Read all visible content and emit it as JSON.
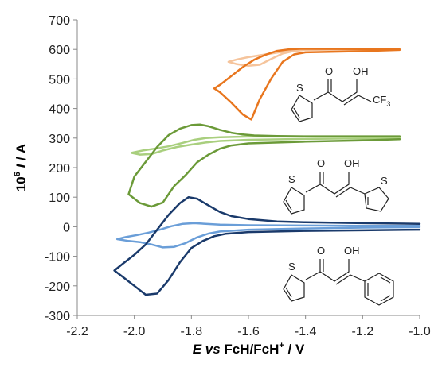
{
  "chart_data": {
    "type": "line",
    "title": "",
    "xlabel": {
      "italic": "E",
      "mid": " vs ",
      "bold": "FcH/FcH",
      "sup": "+",
      "tail": " / V"
    },
    "ylabel": {
      "pre": "10",
      "sup": "6",
      "mid": " I",
      "tail": " / A"
    },
    "xlim": [
      -2.2,
      -1.0
    ],
    "ylim": [
      -300,
      700
    ],
    "xticks": [
      -2.2,
      -2.0,
      -1.8,
      -1.6,
      -1.4,
      -1.2,
      -1.0
    ],
    "xtick_labels": [
      "-2.2",
      "-2.0",
      "-1.8",
      "-1.6",
      "-1.4",
      "-1.2",
      "-1.0"
    ],
    "yticks": [
      700,
      600,
      500,
      400,
      300,
      200,
      100,
      0,
      -100,
      -200,
      -300
    ],
    "ytick_labels": [
      "700",
      "600",
      "500",
      "400",
      "300",
      "200",
      "100",
      "0",
      "-100",
      "-200",
      "-300"
    ],
    "grid": false,
    "legend": "none",
    "series": [
      {
        "color": "#f5c49c",
        "width": 2.5,
        "x": [
          -1.07,
          -1.2,
          -1.4,
          -1.44,
          -1.48,
          -1.52,
          -1.56,
          -1.6,
          -1.64,
          -1.67,
          -1.64,
          -1.6,
          -1.56,
          -1.52,
          -1.48,
          -1.44,
          -1.4,
          -1.2,
          -1.07
        ],
        "y": [
          601,
          600,
          598,
          595,
          586,
          568,
          548,
          545,
          550,
          558,
          566,
          574,
          580,
          586,
          592,
          596,
          598,
          600,
          602
        ]
      },
      {
        "color": "#e8761e",
        "width": 2.5,
        "x": [
          -1.07,
          -1.2,
          -1.4,
          -1.44,
          -1.48,
          -1.52,
          -1.56,
          -1.59,
          -1.62,
          -1.66,
          -1.7,
          -1.72,
          -1.7,
          -1.66,
          -1.62,
          -1.58,
          -1.54,
          -1.5,
          -1.46,
          -1.42,
          -1.4,
          -1.2,
          -1.07
        ],
        "y": [
          598,
          594,
          590,
          583,
          558,
          502,
          432,
          363,
          380,
          420,
          455,
          468,
          480,
          510,
          540,
          565,
          582,
          595,
          600,
          602,
          602,
          601,
          600
        ]
      },
      {
        "color": "#a9cf7e",
        "width": 2.5,
        "x": [
          -1.07,
          -1.2,
          -1.4,
          -1.6,
          -1.7,
          -1.75,
          -1.8,
          -1.85,
          -1.9,
          -1.94,
          -1.98,
          -2.01,
          -1.97,
          -1.93,
          -1.88,
          -1.83,
          -1.79,
          -1.75,
          -1.7,
          -1.6,
          -1.4,
          -1.2,
          -1.07
        ],
        "y": [
          300,
          299,
          297,
          294,
          290,
          285,
          278,
          270,
          258,
          246,
          244,
          250,
          258,
          264,
          272,
          284,
          294,
          300,
          303,
          305,
          305,
          304,
          303
        ]
      },
      {
        "color": "#6b9a38",
        "width": 2.5,
        "x": [
          -1.07,
          -1.2,
          -1.4,
          -1.6,
          -1.66,
          -1.7,
          -1.74,
          -1.78,
          -1.82,
          -1.86,
          -1.9,
          -1.94,
          -1.98,
          -2.02,
          -2.0,
          -1.96,
          -1.92,
          -1.88,
          -1.84,
          -1.8,
          -1.77,
          -1.74,
          -1.7,
          -1.66,
          -1.62,
          -1.58,
          -1.5,
          -1.4,
          -1.2,
          -1.07
        ],
        "y": [
          296,
          292,
          288,
          282,
          275,
          264,
          244,
          218,
          175,
          138,
          82,
          68,
          80,
          110,
          170,
          220,
          270,
          310,
          332,
          344,
          346,
          340,
          328,
          318,
          312,
          309,
          307,
          306,
          306,
          306
        ]
      },
      {
        "color": "#6a9ed8",
        "width": 2.5,
        "x": [
          -1.0,
          -1.2,
          -1.4,
          -1.6,
          -1.7,
          -1.74,
          -1.78,
          -1.82,
          -1.86,
          -1.9,
          -1.94,
          -1.98,
          -2.02,
          -2.06,
          -2.03,
          -1.99,
          -1.95,
          -1.91,
          -1.87,
          -1.83,
          -1.79,
          -1.75,
          -1.7,
          -1.6,
          -1.4,
          -1.2,
          -1.0
        ],
        "y": [
          -1,
          -3,
          -6,
          -10,
          -16,
          -23,
          -36,
          -55,
          -68,
          -70,
          -60,
          -52,
          -48,
          -42,
          -35,
          -28,
          -20,
          -10,
          2,
          10,
          12,
          10,
          7,
          5,
          4,
          3,
          3
        ]
      },
      {
        "color": "#1a3a6b",
        "width": 2.5,
        "x": [
          -1.0,
          -1.2,
          -1.4,
          -1.6,
          -1.68,
          -1.72,
          -1.76,
          -1.8,
          -1.84,
          -1.88,
          -1.92,
          -1.96,
          -2.0,
          -2.04,
          -2.07,
          -2.04,
          -2.0,
          -1.96,
          -1.92,
          -1.88,
          -1.84,
          -1.81,
          -1.78,
          -1.74,
          -1.7,
          -1.66,
          -1.6,
          -1.5,
          -1.4,
          -1.2,
          -1.0
        ],
        "y": [
          -10,
          -12,
          -14,
          -18,
          -24,
          -32,
          -48,
          -72,
          -120,
          -180,
          -226,
          -230,
          -200,
          -170,
          -148,
          -125,
          -95,
          -60,
          -10,
          40,
          80,
          100,
          95,
          72,
          50,
          36,
          26,
          18,
          15,
          12,
          10
        ]
      }
    ]
  },
  "annotations": {
    "cf3_label_main": "CF",
    "cf3_label_sub": "3",
    "oh_label": "OH",
    "o_label": "O",
    "s_label": "S"
  }
}
